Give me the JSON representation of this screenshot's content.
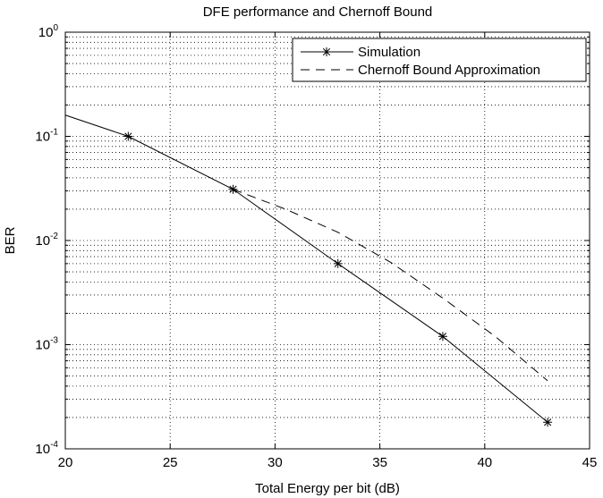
{
  "chart_data": {
    "type": "line",
    "title": "DFE performance and Chernoff Bound",
    "xlabel": "Total Energy per bit (dB)",
    "ylabel": "BER",
    "xlim": [
      20,
      45
    ],
    "ylim": [
      0.0001,
      1
    ],
    "yscale": "log",
    "grid": true,
    "legend_position": "top-right",
    "x_ticks": [
      20,
      25,
      30,
      35,
      40,
      45
    ],
    "x_tick_labels": [
      "20",
      "25",
      "30",
      "35",
      "40",
      "45"
    ],
    "y_ticks": [
      {
        "value": 1,
        "base": "10",
        "exp": "0"
      },
      {
        "value": 0.1,
        "base": "10",
        "exp": "-1"
      },
      {
        "value": 0.01,
        "base": "10",
        "exp": "-2"
      },
      {
        "value": 0.001,
        "base": "10",
        "exp": "-3"
      },
      {
        "value": 0.0001,
        "base": "10",
        "exp": "-4"
      }
    ],
    "series": [
      {
        "name": "Simulation",
        "style": "solid",
        "marker": "asterisk",
        "color": "#000000",
        "points": [
          {
            "x": 20,
            "y": 0.16,
            "marker": false
          },
          {
            "x": 23,
            "y": 0.1,
            "marker": true
          },
          {
            "x": 28,
            "y": 0.031,
            "marker": true
          },
          {
            "x": 33,
            "y": 0.006,
            "marker": true
          },
          {
            "x": 38,
            "y": 0.0012,
            "marker": true
          },
          {
            "x": 43,
            "y": 0.00018,
            "marker": true
          }
        ]
      },
      {
        "name": "Chernoff Bound Approximation",
        "style": "dashed",
        "marker": "none",
        "color": "#000000",
        "points": [
          {
            "x": 28,
            "y": 0.031
          },
          {
            "x": 30.5,
            "y": 0.02
          },
          {
            "x": 33,
            "y": 0.012
          },
          {
            "x": 35.5,
            "y": 0.0062
          },
          {
            "x": 38,
            "y": 0.0028
          },
          {
            "x": 40.5,
            "y": 0.0012
          },
          {
            "x": 43,
            "y": 0.00045
          }
        ]
      }
    ]
  }
}
